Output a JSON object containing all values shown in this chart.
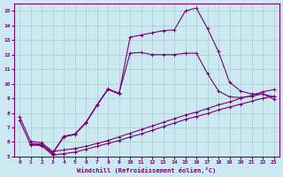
{
  "xlabel": "Windchill (Refroidissement éolien,°C)",
  "background_color": "#cce8f0",
  "grid_color": "#aacccc",
  "line_color": "#770077",
  "xlim": [
    -0.5,
    23.5
  ],
  "ylim": [
    5,
    15.5
  ],
  "xticks": [
    0,
    1,
    2,
    3,
    4,
    5,
    6,
    7,
    8,
    9,
    10,
    11,
    12,
    13,
    14,
    15,
    16,
    17,
    18,
    19,
    20,
    21,
    22,
    23
  ],
  "yticks": [
    5,
    6,
    7,
    8,
    9,
    10,
    11,
    12,
    13,
    14,
    15
  ],
  "line1_x": [
    0,
    1,
    2,
    3,
    4,
    5,
    6,
    7,
    8,
    9,
    10,
    11,
    12,
    13,
    14,
    15,
    16,
    17,
    18,
    19,
    20,
    21,
    22,
    23
  ],
  "line1_y": [
    7.75,
    6.05,
    5.95,
    5.35,
    5.45,
    5.55,
    5.7,
    5.9,
    6.1,
    6.35,
    6.6,
    6.85,
    7.1,
    7.35,
    7.6,
    7.85,
    8.05,
    8.3,
    8.55,
    8.75,
    9.0,
    9.2,
    9.45,
    9.6
  ],
  "line2_x": [
    0,
    1,
    2,
    3,
    4,
    5,
    6,
    7,
    8,
    9,
    10,
    11,
    12,
    13,
    14,
    15,
    16,
    17,
    18,
    19,
    20,
    21,
    22,
    23
  ],
  "line2_y": [
    7.5,
    5.8,
    5.75,
    5.1,
    5.2,
    5.3,
    5.5,
    5.7,
    5.9,
    6.1,
    6.35,
    6.55,
    6.8,
    7.05,
    7.3,
    7.55,
    7.75,
    7.95,
    8.2,
    8.4,
    8.6,
    8.8,
    9.0,
    9.15
  ],
  "line3_x": [
    1,
    2,
    3,
    4,
    5,
    6,
    7,
    8,
    9,
    10,
    11,
    12,
    13,
    14,
    15,
    16,
    17,
    18,
    19,
    20,
    21,
    22,
    23
  ],
  "line3_y": [
    5.9,
    5.85,
    5.25,
    6.4,
    6.55,
    7.35,
    8.55,
    9.65,
    9.35,
    12.1,
    12.15,
    12.0,
    12.0,
    12.0,
    12.1,
    12.1,
    10.7,
    9.5,
    9.1,
    9.05,
    9.15,
    9.3,
    9.1
  ],
  "line4_x": [
    1,
    2,
    3,
    4,
    5,
    6,
    7,
    8,
    9,
    10,
    11,
    12,
    13,
    14,
    15,
    16,
    17,
    18,
    19,
    20,
    21,
    22,
    23
  ],
  "line4_y": [
    5.85,
    5.8,
    5.2,
    6.35,
    6.5,
    7.3,
    8.5,
    9.6,
    9.3,
    13.2,
    13.35,
    13.5,
    13.65,
    13.7,
    15.0,
    15.2,
    13.8,
    12.2,
    10.1,
    9.5,
    9.3,
    9.3,
    8.95
  ]
}
